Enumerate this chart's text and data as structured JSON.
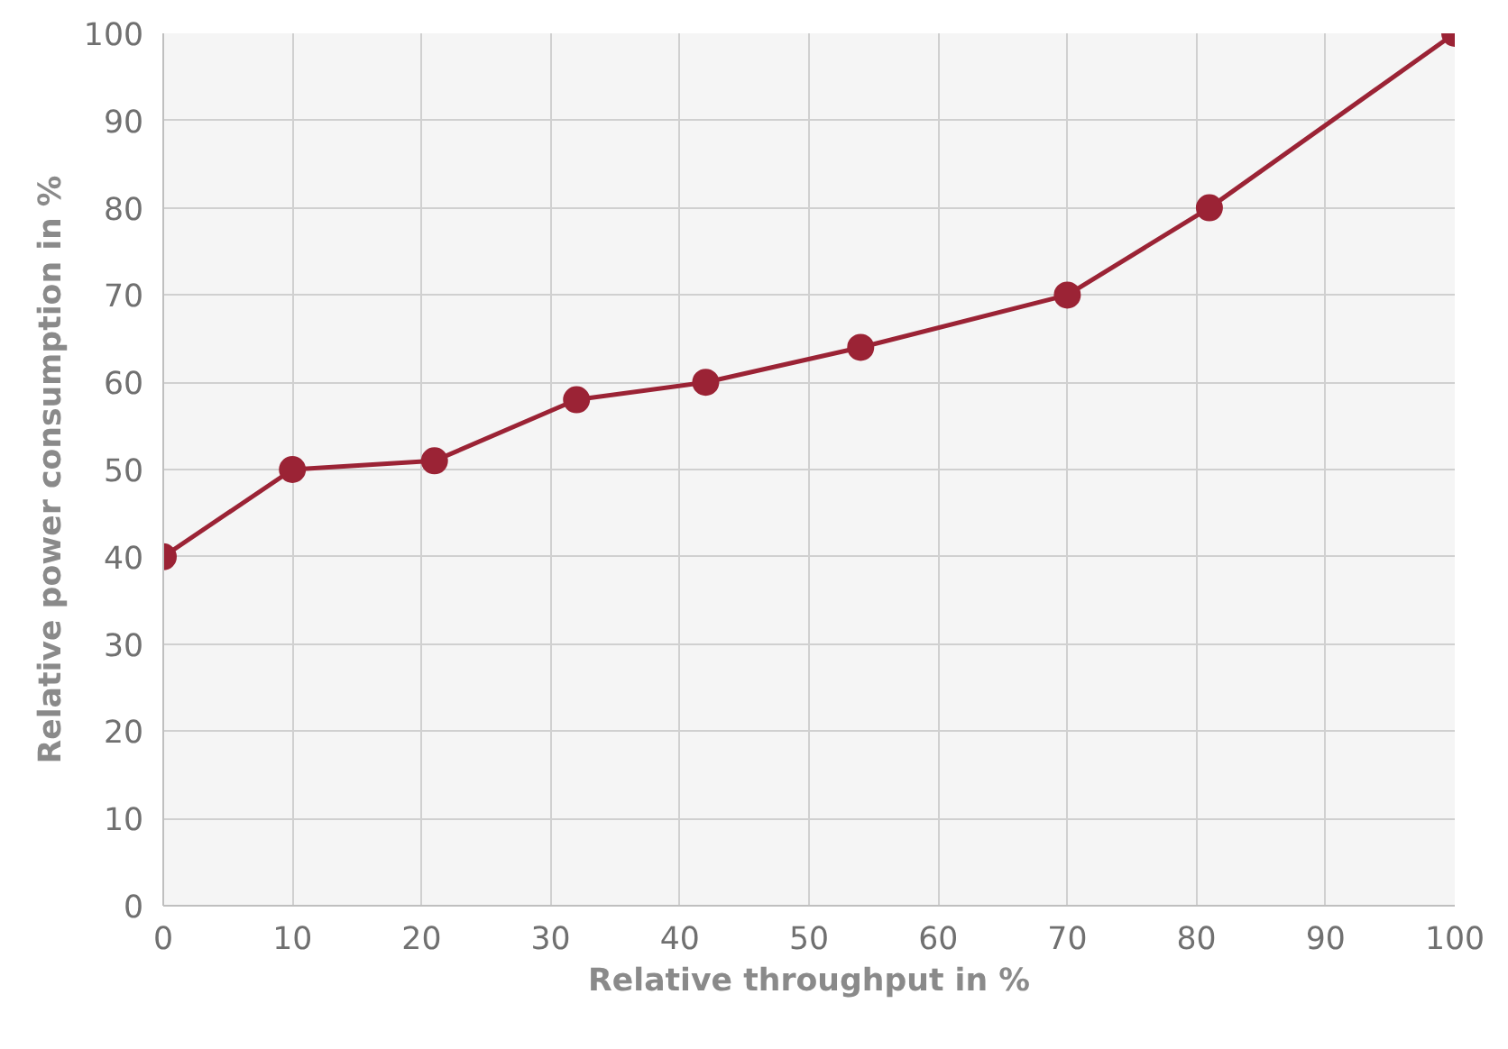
{
  "chart_data": {
    "type": "line",
    "xlabel": "Relative throughput in %",
    "ylabel": "Relative power consumption in %",
    "x": [
      0,
      10,
      21,
      32,
      42,
      54,
      70,
      81,
      100
    ],
    "series": [
      {
        "color": "#9b2335",
        "values": [
          40,
          50,
          51,
          58,
          60,
          64,
          70,
          80,
          100
        ]
      }
    ],
    "xlim": [
      0,
      100
    ],
    "ylim": [
      0,
      100
    ],
    "xticks": [
      0,
      10,
      20,
      30,
      40,
      50,
      60,
      70,
      80,
      90,
      100
    ],
    "yticks": [
      0,
      10,
      20,
      30,
      40,
      50,
      60,
      70,
      80,
      90,
      100
    ],
    "grid": true,
    "marker": "circle",
    "line_style": "solid"
  }
}
